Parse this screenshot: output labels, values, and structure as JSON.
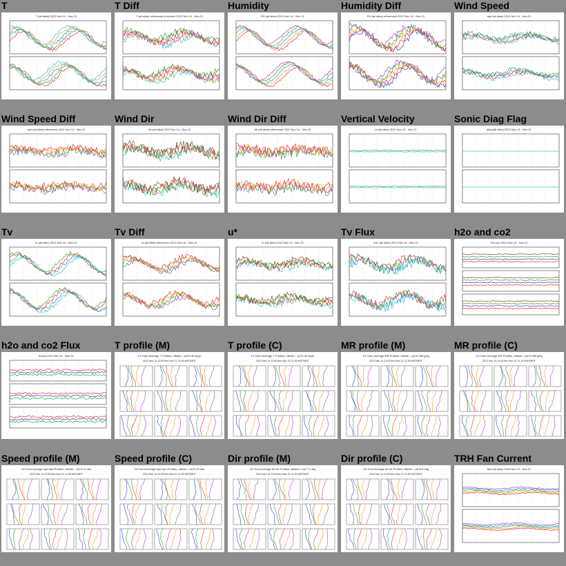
{
  "cells": [
    {
      "title": "T",
      "kind": "ts",
      "caption": "T (all sites) 2012 Nov 14 - Nov 21",
      "traces": [
        "#e53030",
        "#30a030",
        "#3a8ad8",
        "#e0a020",
        "#30c0c0"
      ],
      "noise": 0.25,
      "wave": 1.0
    },
    {
      "title": "T Diff",
      "kind": "ts",
      "caption": "T (all sites) referenced to bottom 2012 Nov 14 - Nov 21",
      "traces": [
        "#30c0c0",
        "#e0a020",
        "#b040c0",
        "#e53030",
        "#30a030"
      ],
      "noise": 0.6,
      "wave": 0.5
    },
    {
      "title": "Humidity",
      "kind": "ts",
      "caption": "RH (all sites) 2012 Nov 14 - Nov 21",
      "traces": [
        "#e53030",
        "#e0a020",
        "#3a8ad8",
        "#30a030",
        "#b040c0"
      ],
      "noise": 0.2,
      "wave": 1.0
    },
    {
      "title": "Humidity Diff",
      "kind": "ts",
      "caption": "RH (all sites) referenced 2012 Nov 14 - Nov 21",
      "traces": [
        "#3a3ad8",
        "#e53030",
        "#e0a020",
        "#30a030",
        "#b040c0"
      ],
      "noise": 0.5,
      "wave": 1.0
    },
    {
      "title": "Wind Speed",
      "kind": "ts",
      "caption": "spd (all sites) 2012 Nov 14 - Nov 21",
      "traces": [
        "#30c0c0",
        "#e53030",
        "#3a8ad8",
        "#30a030"
      ],
      "noise": 0.4,
      "wave": 0.3
    },
    {
      "title": "Wind Speed Diff",
      "kind": "ts",
      "caption": "spd (all sites) referenced 2012 Nov 14 - Nov 21",
      "traces": [
        "#b040c0",
        "#30a030",
        "#e0a020",
        "#e53030"
      ],
      "noise": 0.6,
      "wave": 0.2
    },
    {
      "title": "Wind Dir",
      "kind": "ts",
      "caption": "dir (all sites) 2012 Nov 14 - Nov 21",
      "traces": [
        "#30c0c0",
        "#30a030",
        "#e53030",
        "#7a4a20"
      ],
      "noise": 0.9,
      "wave": 0.4
    },
    {
      "title": "Wind Dir Diff",
      "kind": "ts",
      "caption": "dir (all sites) referenced 2012 Nov 14 - Nov 21",
      "traces": [
        "#30a030",
        "#b040c0",
        "#e0a020",
        "#e53030"
      ],
      "noise": 0.8,
      "wave": 0.2
    },
    {
      "title": "Vertical Velocity",
      "kind": "ts",
      "caption": "w (all sites) 2012 Nov 14 - Nov 21",
      "traces": [
        "#30c0c0",
        "#30a030"
      ],
      "noise": 0.05,
      "wave": 0.0
    },
    {
      "title": "Sonic Diag Flag",
      "kind": "ts",
      "caption": "diag (all sites) 2012 Nov 14 - Nov 21",
      "traces": [
        "#30c0c0"
      ],
      "noise": 0.0,
      "wave": 0.0
    },
    {
      "title": "Tv",
      "kind": "ts",
      "caption": "tc (all sites) 2012 Nov 14 - Nov 21",
      "traces": [
        "#30c0c0",
        "#3a8ad8",
        "#e53030",
        "#30a030"
      ],
      "noise": 0.3,
      "wave": 1.0
    },
    {
      "title": "Tv Diff",
      "kind": "ts",
      "caption": "tc (all sites) referenced 2012 Nov 14 - Nov 21",
      "traces": [
        "#b040c0",
        "#30a030",
        "#e0a020",
        "#e53030"
      ],
      "noise": 0.5,
      "wave": 0.6
    },
    {
      "title": "u*",
      "kind": "ts",
      "caption": "u* (all sites) 2012 Nov 14 - Nov 21",
      "traces": [
        "#30c0c0",
        "#e53030",
        "#30a030",
        "#7a4a20"
      ],
      "noise": 0.6,
      "wave": 0.3
    },
    {
      "title": "Tv Flux",
      "kind": "ts",
      "caption": "w'tc' (all sites) 2012 Nov 14 - Nov 21",
      "traces": [
        "#30c0c0",
        "#3a8ad8",
        "#30a030",
        "#e53030"
      ],
      "noise": 0.8,
      "wave": 0.6
    },
    {
      "title": "h2o and co2",
      "kind": "ts3",
      "caption": "h2o,co2 2012 Nov 14 - Nov 21",
      "traces": [
        "#e53030",
        "#3a3ad8",
        "#30a030",
        "#7a4a20"
      ],
      "noise": 0.05,
      "wave": 0.0
    },
    {
      "title": "h2o and co2 Flux",
      "kind": "ts3",
      "caption": "fluxes 2012 Nov 14 - Nov 21",
      "traces": [
        "#30a030",
        "#3a3ad8",
        "#e53030"
      ],
      "noise": 0.1,
      "wave": 0.0
    },
    {
      "title": "T profile (M)",
      "kind": "prof",
      "caption": "1/2 Hour Average T Profiles; offsets = (n)*0.36 degC",
      "sub": "2012 Nov 14 12:00 thru Nov 21 11:30 MST/MDT",
      "traces": [
        "#3a3ad8",
        "#30a030",
        "#e53030",
        "#e0a020",
        "#b040c0"
      ]
    },
    {
      "title": "T profile (C)",
      "kind": "prof",
      "caption": "1/2 Hour Average T Profiles; offsets = (n)*0.36 degC",
      "sub": "2012 Nov 14 12:00 thru Nov 21 11:30 MST/MDT",
      "traces": [
        "#3a3ad8",
        "#30a030",
        "#e53030",
        "#e0a020",
        "#b040c0"
      ]
    },
    {
      "title": "MR profile (M)",
      "kind": "prof",
      "caption": "1/2 Hour Average MR Profiles; offsets = (n)*0.068 g/kg",
      "sub": "2012 Nov 14 12:00 thru Nov 21 11:30 MST/MDT",
      "traces": [
        "#3a3ad8",
        "#30a030",
        "#e53030",
        "#e0a020",
        "#b040c0"
      ]
    },
    {
      "title": "MR profile (C)",
      "kind": "prof",
      "caption": "1/2 Hour Average MR Profiles; offsets = (n)*0.068 g/kg",
      "sub": "2012 Nov 14 12:00 thru Nov 21 11:30 MST/MDT",
      "traces": [
        "#3a3ad8",
        "#30a030",
        "#e53030",
        "#e0a020",
        "#b040c0"
      ]
    },
    {
      "title": "Speed profile (M)",
      "kind": "prof",
      "caption": "1/2 Hour Average spd.Spd Profiles; offsets = (n)*0.12 m/s",
      "sub": "2012 Nov 14 12:00 thru Nov 21 11:30 MST/MDT",
      "traces": [
        "#3a3ad8",
        "#30a030",
        "#e53030",
        "#e0a020",
        "#b040c0"
      ]
    },
    {
      "title": "Speed profile (C)",
      "kind": "prof",
      "caption": "1/2 Hour Average spd.Spd Profiles; offsets = (n)*0.09 m/s",
      "sub": "2012 Nov 14 12:00 thru Nov 21 11:30 MST/MDT",
      "traces": [
        "#3a3ad8",
        "#30a030",
        "#e53030",
        "#e0a020",
        "#b040c0"
      ]
    },
    {
      "title": "Dir profile (M)",
      "kind": "prof",
      "caption": "1/2 Hour Average dir.Dir Profiles; offsets = (n)*7.2 deg",
      "sub": "2012 Nov 14 12:00 thru Nov 21 11:30 MST/MDT",
      "traces": [
        "#3a3ad8",
        "#30a030",
        "#e53030",
        "#e0a020",
        "#b040c0"
      ]
    },
    {
      "title": "Dir profile (C)",
      "kind": "prof",
      "caption": "1/2 Hour Average dir.Dir Profiles; offsets = (n)*6.8 deg",
      "sub": "2012 Nov 14 12:00 thru Nov 21 11:30 MST/MDT",
      "traces": [
        "#3a3ad8",
        "#30a030",
        "#e53030",
        "#e0a020",
        "#b040c0"
      ]
    },
    {
      "title": "TRH Fan Current",
      "kind": "ts",
      "caption": "ifan (all sites) 2012 Nov 14 - Nov 21",
      "traces": [
        "#e53030",
        "#e0a020",
        "#30a030",
        "#3a8ad8",
        "#b040c0"
      ],
      "noise": 0.1,
      "wave": 0.1
    }
  ]
}
